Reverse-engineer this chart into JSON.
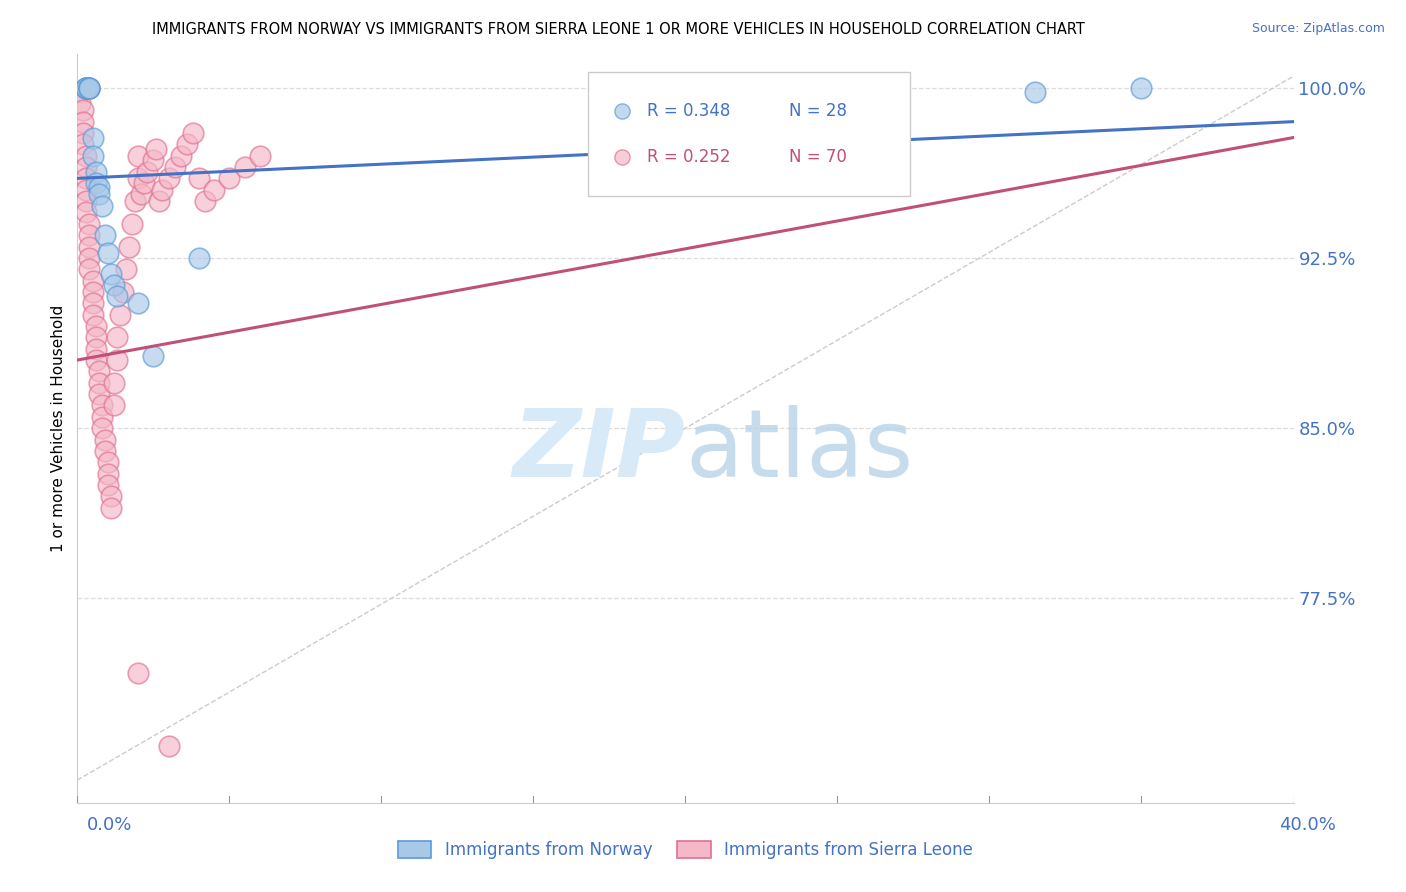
{
  "title": "IMMIGRANTS FROM NORWAY VS IMMIGRANTS FROM SIERRA LEONE 1 OR MORE VEHICLES IN HOUSEHOLD CORRELATION CHART",
  "source": "Source: ZipAtlas.com",
  "ylabel": "1 or more Vehicles in Household",
  "norway_R": 0.348,
  "norway_N": 28,
  "sl_R": 0.252,
  "sl_N": 70,
  "norway_color": "#a8c8e8",
  "sl_color": "#f4b8c8",
  "norway_edge_color": "#5b9bd5",
  "sl_edge_color": "#e07090",
  "norway_line_color": "#4472c4",
  "sl_line_color": "#c0507a",
  "diag_color": "#cccccc",
  "grid_color": "#dddddd",
  "tick_color": "#4472c4",
  "watermark_color": "#d8eaf8",
  "xmin": 0.0,
  "xmax": 0.4,
  "ymin": 0.685,
  "ymax": 1.015,
  "ytick_vals": [
    0.775,
    0.85,
    0.925,
    1.0
  ],
  "ytick_labels": [
    "77.5%",
    "85.0%",
    "92.5%",
    "100.0%"
  ],
  "norway_x": [
    0.003,
    0.003,
    0.003,
    0.003,
    0.003,
    0.004,
    0.004,
    0.004,
    0.004,
    0.005,
    0.005,
    0.006,
    0.006,
    0.007,
    0.007,
    0.008,
    0.009,
    0.01,
    0.011,
    0.012,
    0.013,
    0.02,
    0.025,
    0.04,
    0.215,
    0.27,
    0.315,
    0.35
  ],
  "norway_y": [
    1.0,
    1.0,
    1.0,
    1.0,
    1.0,
    1.0,
    1.0,
    1.0,
    1.0,
    0.978,
    0.97,
    0.963,
    0.958,
    0.956,
    0.953,
    0.948,
    0.935,
    0.927,
    0.918,
    0.913,
    0.908,
    0.905,
    0.882,
    0.925,
    0.982,
    1.0,
    0.998,
    1.0
  ],
  "sl_x": [
    0.001,
    0.001,
    0.002,
    0.002,
    0.002,
    0.002,
    0.003,
    0.003,
    0.003,
    0.003,
    0.003,
    0.003,
    0.004,
    0.004,
    0.004,
    0.004,
    0.004,
    0.005,
    0.005,
    0.005,
    0.005,
    0.006,
    0.006,
    0.006,
    0.006,
    0.007,
    0.007,
    0.007,
    0.008,
    0.008,
    0.008,
    0.009,
    0.009,
    0.01,
    0.01,
    0.01,
    0.011,
    0.011,
    0.012,
    0.012,
    0.013,
    0.013,
    0.014,
    0.015,
    0.016,
    0.017,
    0.018,
    0.019,
    0.02,
    0.02,
    0.021,
    0.022,
    0.023,
    0.025,
    0.026,
    0.027,
    0.028,
    0.03,
    0.032,
    0.034,
    0.036,
    0.038,
    0.04,
    0.042,
    0.045,
    0.05,
    0.055,
    0.06,
    0.02,
    0.03
  ],
  "sl_y": [
    0.998,
    0.993,
    0.99,
    0.985,
    0.98,
    0.975,
    0.97,
    0.965,
    0.96,
    0.955,
    0.95,
    0.945,
    0.94,
    0.935,
    0.93,
    0.925,
    0.92,
    0.915,
    0.91,
    0.905,
    0.9,
    0.895,
    0.89,
    0.885,
    0.88,
    0.875,
    0.87,
    0.865,
    0.86,
    0.855,
    0.85,
    0.845,
    0.84,
    0.835,
    0.83,
    0.825,
    0.82,
    0.815,
    0.86,
    0.87,
    0.88,
    0.89,
    0.9,
    0.91,
    0.92,
    0.93,
    0.94,
    0.95,
    0.96,
    0.97,
    0.953,
    0.958,
    0.963,
    0.968,
    0.973,
    0.95,
    0.955,
    0.96,
    0.965,
    0.97,
    0.975,
    0.98,
    0.96,
    0.95,
    0.955,
    0.96,
    0.965,
    0.97,
    0.742,
    0.71
  ],
  "norway_trend_x": [
    0.0,
    0.4
  ],
  "norway_trend_y": [
    0.96,
    0.985
  ],
  "sl_trend_x": [
    0.0,
    0.4
  ],
  "sl_trend_y": [
    0.88,
    0.978
  ]
}
